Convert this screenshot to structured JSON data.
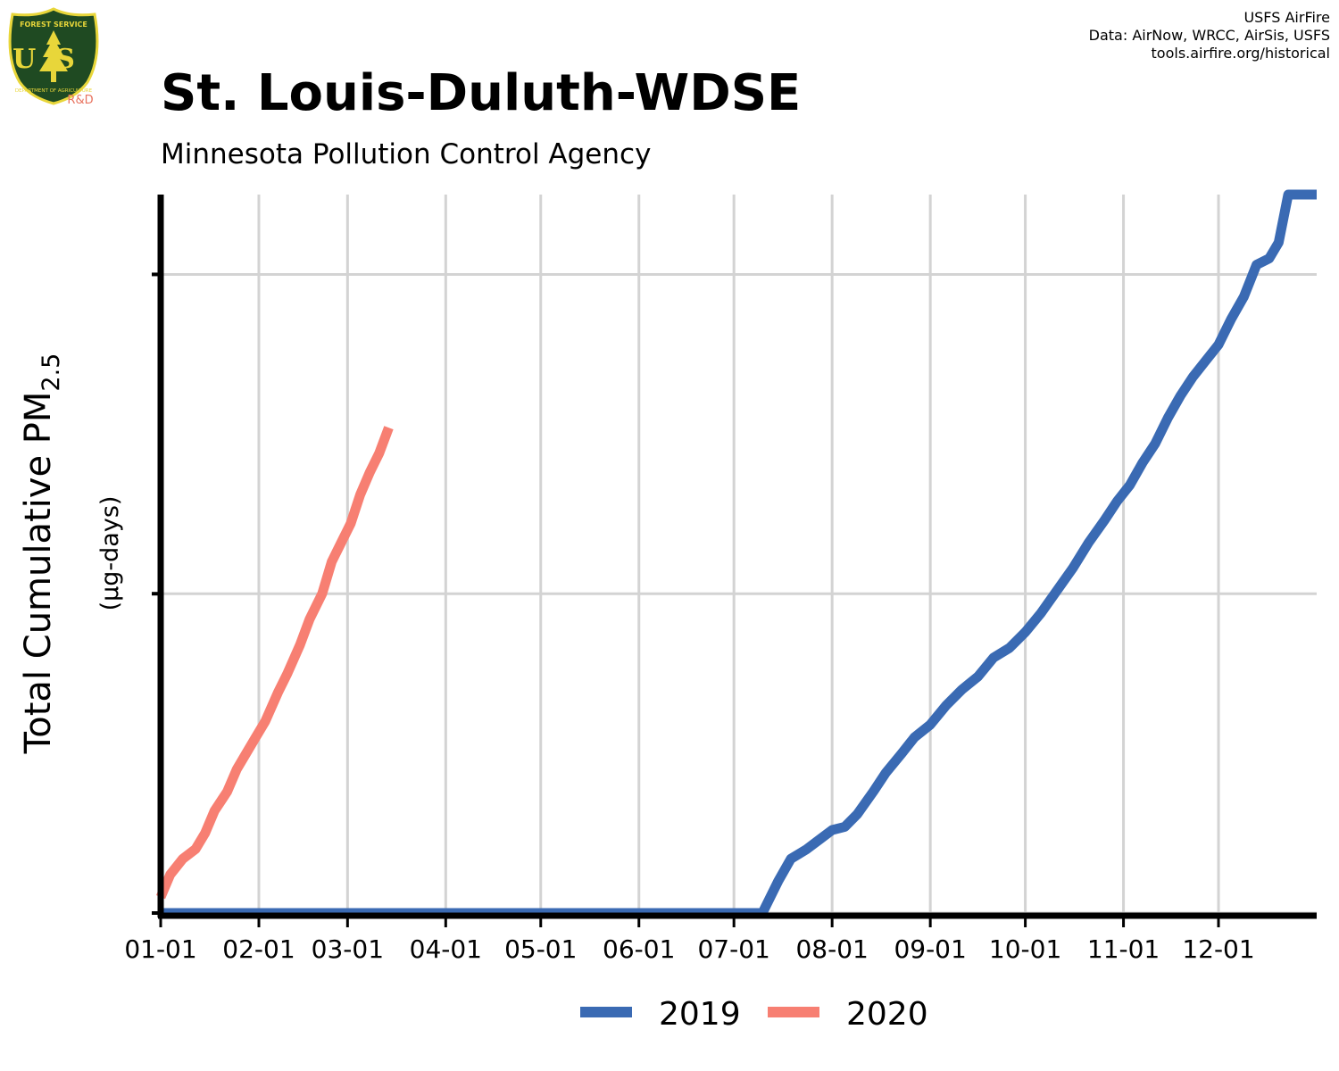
{
  "logo": {
    "top_text": "FOREST SERVICE",
    "letters": "US",
    "bottom_text": "DEPARTMENT OF AGRICULTURE",
    "rd_label": "R&D",
    "colors": {
      "shield": "#1f4a22",
      "gold": "#e8d63a",
      "rd": "#e8735f"
    }
  },
  "credits": {
    "line1": "USFS AirFire",
    "line2": "Data: AirNow, WRCC, AirSis, USFS",
    "line3": "tools.airfire.org/historical"
  },
  "header": {
    "title": "St. Louis-Duluth-WDSE",
    "subtitle": "Minnesota Pollution Control Agency"
  },
  "chart_data": {
    "type": "line",
    "ylabel_main": "Total Cumulative PM",
    "ylabel_sub": "2.5",
    "ylabel_units": "(µg-days)",
    "x_tick_labels": [
      "01-01",
      "02-01",
      "03-01",
      "04-01",
      "05-01",
      "06-01",
      "07-01",
      "08-01",
      "09-01",
      "10-01",
      "11-01",
      "12-01"
    ],
    "x_tick_days": [
      0,
      31,
      59,
      90,
      120,
      151,
      181,
      212,
      243,
      273,
      304,
      334
    ],
    "xlim": [
      0,
      365
    ],
    "ylim": [
      0,
      225
    ],
    "y_gridlines": [
      0,
      100,
      200
    ],
    "y_tick_labels_shown": false,
    "grid": true,
    "legend_position": "bottom",
    "series": [
      {
        "name": "2019",
        "color": "#3a6ab3",
        "x": [
          0,
          190,
          195,
          199,
          204,
          208,
          212,
          216,
          220,
          225,
          229,
          234,
          238,
          243,
          248,
          253,
          258,
          263,
          268,
          273,
          278,
          283,
          288,
          293,
          298,
          302,
          306,
          310,
          314,
          318,
          322,
          326,
          330,
          334,
          338,
          342,
          346,
          350,
          353,
          356,
          358,
          360,
          363,
          365
        ],
        "y": [
          0,
          0,
          10,
          17,
          20,
          23,
          26,
          27,
          31,
          38,
          44,
          50,
          55,
          59,
          65,
          70,
          74,
          80,
          83,
          88,
          94,
          101,
          108,
          116,
          123,
          129,
          134,
          141,
          147,
          155,
          162,
          168,
          173,
          178,
          186,
          193,
          203,
          205,
          210,
          225,
          230,
          235,
          240,
          242
        ]
      },
      {
        "name": "2020",
        "color": "#f77f72",
        "x": [
          0,
          3,
          7,
          11,
          14,
          17,
          21,
          24,
          27,
          30,
          33,
          37,
          40,
          44,
          47,
          51,
          54,
          57,
          60,
          63,
          66,
          69,
          72
        ],
        "y": [
          5,
          12,
          17,
          20,
          25,
          32,
          38,
          45,
          50,
          55,
          60,
          69,
          75,
          84,
          92,
          100,
          110,
          116,
          122,
          131,
          138,
          144,
          152
        ]
      }
    ]
  }
}
